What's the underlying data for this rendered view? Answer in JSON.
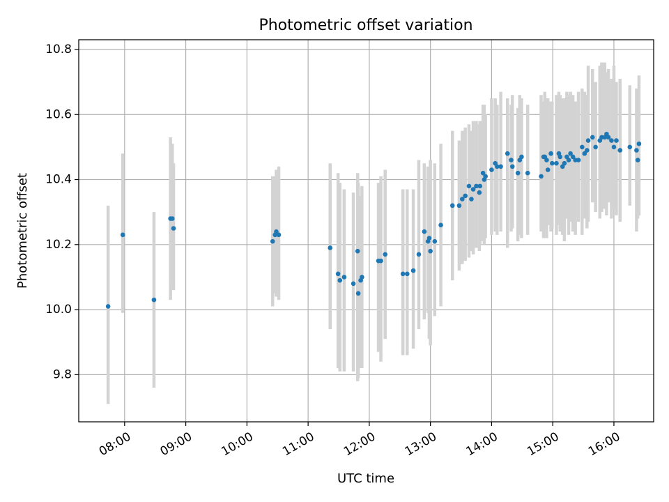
{
  "chart_data": {
    "type": "scatter",
    "title": "Photometric offset variation",
    "xlabel": "UTC time",
    "ylabel": "Photometric offset",
    "xlim": [
      7.25,
      16.65
    ],
    "ylim": [
      9.655,
      10.83
    ],
    "grid": true,
    "x_ticks": [
      {
        "value": 8,
        "label": "08:00"
      },
      {
        "value": 9,
        "label": "09:00"
      },
      {
        "value": 10,
        "label": "10:00"
      },
      {
        "value": 11,
        "label": "11:00"
      },
      {
        "value": 12,
        "label": "12:00"
      },
      {
        "value": 13,
        "label": "13:00"
      },
      {
        "value": 14,
        "label": "14:00"
      },
      {
        "value": 15,
        "label": "15:00"
      },
      {
        "value": 16,
        "label": "16:00"
      }
    ],
    "y_ticks": [
      {
        "value": 9.8,
        "label": "9.8"
      },
      {
        "value": 10.0,
        "label": "10.0"
      },
      {
        "value": 10.2,
        "label": "10.2"
      },
      {
        "value": 10.4,
        "label": "10.4"
      },
      {
        "value": 10.6,
        "label": "10.6"
      },
      {
        "value": 10.8,
        "label": "10.8"
      }
    ],
    "colors": {
      "points": "#1f77b4",
      "errorbars": "#d3d3d3",
      "grid": "#b0b0b0"
    },
    "series": [
      {
        "name": "Photometric offset",
        "x": [
          7.73,
          7.97,
          8.48,
          8.75,
          8.78,
          8.8,
          10.42,
          10.46,
          10.48,
          10.52,
          11.36,
          11.49,
          11.52,
          11.59,
          11.74,
          11.81,
          11.82,
          11.86,
          11.88,
          12.15,
          12.19,
          12.26,
          12.55,
          12.62,
          12.72,
          12.81,
          12.9,
          12.96,
          12.98,
          13.0,
          13.07,
          13.17,
          13.36,
          13.47,
          13.52,
          13.57,
          13.63,
          13.67,
          13.7,
          13.75,
          13.8,
          13.81,
          13.86,
          13.88,
          13.9,
          14.0,
          14.06,
          14.09,
          14.15,
          14.26,
          14.32,
          14.34,
          14.43,
          14.46,
          14.49,
          14.59,
          14.81,
          14.85,
          14.87,
          14.9,
          14.92,
          14.97,
          14.99,
          15.06,
          15.1,
          15.12,
          15.16,
          15.19,
          15.23,
          15.26,
          15.29,
          15.33,
          15.37,
          15.42,
          15.48,
          15.52,
          15.56,
          15.58,
          15.65,
          15.7,
          15.77,
          15.8,
          15.85,
          15.88,
          15.91,
          15.96,
          16.0,
          16.04,
          16.1,
          16.26,
          16.37,
          16.39,
          16.41
        ],
        "y": [
          10.01,
          10.23,
          10.03,
          10.28,
          10.28,
          10.25,
          10.21,
          10.23,
          10.24,
          10.23,
          10.19,
          10.11,
          10.09,
          10.1,
          10.08,
          10.18,
          10.05,
          10.09,
          10.1,
          10.15,
          10.15,
          10.17,
          10.11,
          10.11,
          10.12,
          10.17,
          10.24,
          10.21,
          10.22,
          10.18,
          10.21,
          10.26,
          10.32,
          10.32,
          10.34,
          10.35,
          10.38,
          10.34,
          10.37,
          10.38,
          10.36,
          10.38,
          10.42,
          10.4,
          10.41,
          10.43,
          10.45,
          10.44,
          10.44,
          10.48,
          10.46,
          10.44,
          10.42,
          10.46,
          10.47,
          10.42,
          10.41,
          10.47,
          10.47,
          10.46,
          10.43,
          10.48,
          10.45,
          10.45,
          10.48,
          10.47,
          10.44,
          10.45,
          10.47,
          10.46,
          10.48,
          10.47,
          10.46,
          10.46,
          10.5,
          10.48,
          10.49,
          10.52,
          10.53,
          10.5,
          10.52,
          10.53,
          10.53,
          10.54,
          10.53,
          10.52,
          10.5,
          10.52,
          10.49,
          10.5,
          10.49,
          10.46,
          10.51
        ],
        "err_low": [
          9.71,
          9.99,
          9.76,
          10.03,
          10.08,
          10.06,
          10.01,
          10.05,
          10.04,
          10.03,
          9.94,
          9.82,
          9.81,
          9.81,
          9.81,
          9.78,
          9.79,
          9.82,
          9.82,
          9.87,
          9.84,
          9.91,
          9.86,
          9.86,
          9.88,
          9.94,
          9.97,
          9.99,
          9.91,
          9.89,
          9.98,
          10.01,
          10.09,
          10.12,
          10.14,
          10.15,
          10.16,
          10.18,
          10.17,
          10.19,
          10.18,
          10.2,
          10.21,
          10.2,
          10.22,
          10.23,
          10.24,
          10.23,
          10.24,
          10.19,
          10.24,
          10.25,
          10.21,
          10.23,
          10.22,
          10.23,
          10.24,
          10.22,
          10.25,
          10.22,
          10.26,
          10.24,
          10.25,
          10.23,
          10.26,
          10.24,
          10.23,
          10.21,
          10.28,
          10.23,
          10.27,
          10.24,
          10.23,
          10.27,
          10.23,
          10.28,
          10.25,
          10.27,
          10.33,
          10.3,
          10.28,
          10.3,
          10.31,
          10.29,
          10.33,
          10.28,
          10.31,
          10.29,
          10.27,
          10.32,
          10.24,
          10.28,
          10.29
        ],
        "err_high": [
          10.32,
          10.48,
          10.3,
          10.53,
          10.51,
          10.45,
          10.41,
          10.41,
          10.43,
          10.44,
          10.45,
          10.42,
          10.39,
          10.37,
          10.36,
          10.42,
          10.39,
          10.35,
          10.38,
          10.39,
          10.41,
          10.43,
          10.37,
          10.37,
          10.37,
          10.46,
          10.45,
          10.44,
          10.41,
          10.46,
          10.45,
          10.51,
          10.55,
          10.52,
          10.55,
          10.56,
          10.57,
          10.55,
          10.58,
          10.58,
          10.57,
          10.58,
          10.63,
          10.63,
          10.6,
          10.65,
          10.65,
          10.63,
          10.67,
          10.65,
          10.63,
          10.66,
          10.62,
          10.66,
          10.65,
          10.63,
          10.66,
          10.64,
          10.67,
          10.63,
          10.65,
          10.64,
          10.64,
          10.66,
          10.67,
          10.66,
          10.65,
          10.65,
          10.67,
          10.66,
          10.67,
          10.66,
          10.64,
          10.67,
          10.68,
          10.67,
          10.66,
          10.75,
          10.74,
          10.7,
          10.75,
          10.76,
          10.76,
          10.73,
          10.74,
          10.71,
          10.75,
          10.7,
          10.71,
          10.69,
          10.68,
          10.64,
          10.72
        ]
      }
    ]
  }
}
